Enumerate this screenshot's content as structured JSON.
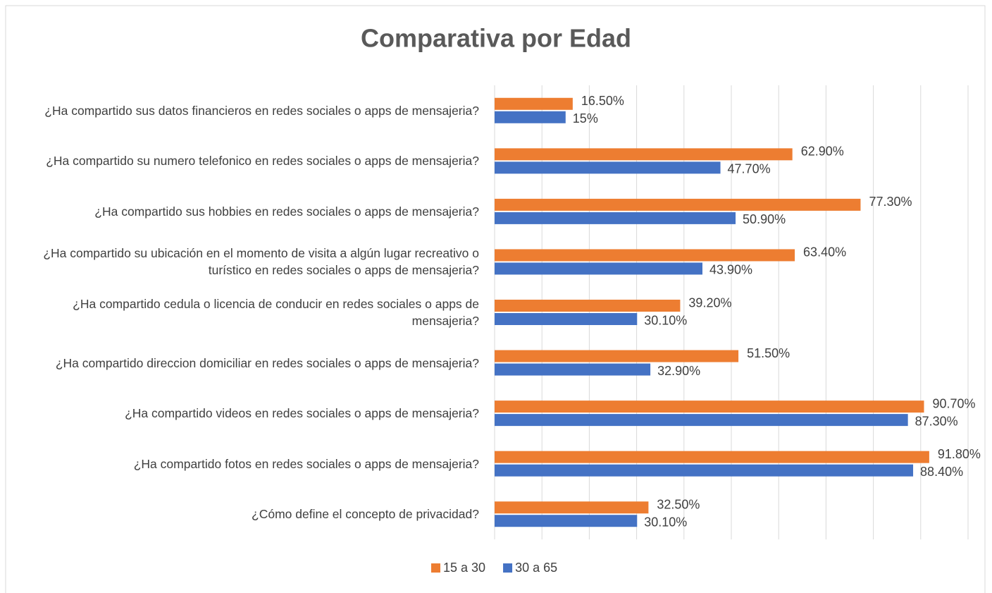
{
  "chart_data": {
    "type": "hbar",
    "title": "Comparativa por Edad",
    "categories": [
      "¿Ha compartido sus datos financieros en redes sociales o apps de mensajeria?",
      "¿Ha compartido su numero telefonico en redes sociales o apps de mensajeria?",
      "¿Ha compartido sus hobbies en redes sociales o apps de mensajeria?",
      "¿Ha compartido su ubicación en el momento de visita a algún lugar recreativo o turístico en redes sociales o apps de mensajeria?",
      "¿Ha compartido cedula o licencia de conducir en redes sociales o apps de mensajeria?",
      "¿Ha compartido direccion domiciliar en redes sociales o apps de mensajeria?",
      "¿Ha compartido videos en redes sociales o apps de mensajeria?",
      "¿Ha compartido fotos en redes sociales o apps de mensajeria?",
      "¿Cómo define el concepto de privacidad?"
    ],
    "series": [
      {
        "name": "15 a 30",
        "color": "#ed7d31",
        "values": [
          16.5,
          62.9,
          77.3,
          63.4,
          39.2,
          51.5,
          90.7,
          91.8,
          32.5
        ],
        "value_labels": [
          "16.50%",
          "62.90%",
          "77.30%",
          "63.40%",
          "39.20%",
          "51.50%",
          "90.70%",
          "91.80%",
          "32.50%"
        ]
      },
      {
        "name": "30 a 65",
        "color": "#4472c4",
        "values": [
          15,
          47.7,
          50.9,
          43.9,
          30.1,
          32.9,
          87.3,
          88.4,
          30.1
        ],
        "value_labels": [
          "15%",
          "47.70%",
          "50.90%",
          "43.90%",
          "30.10%",
          "32.90%",
          "87.30%",
          "88.40%",
          "30.10%"
        ]
      }
    ],
    "xlim": [
      0,
      100
    ],
    "xticks": [
      0,
      10,
      20,
      30,
      40,
      50,
      60,
      70,
      80,
      90,
      100
    ],
    "grid": true,
    "legend": "bottom"
  }
}
